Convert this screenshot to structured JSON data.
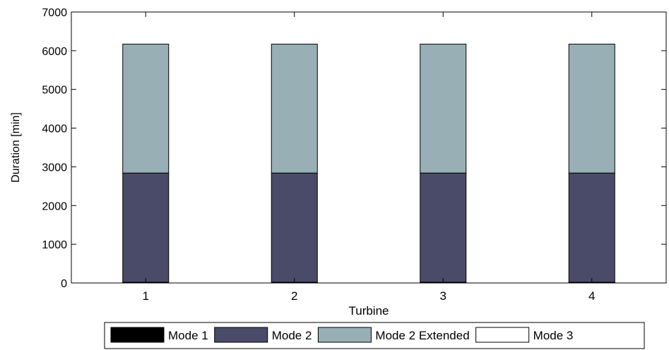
{
  "chart_data": {
    "type": "bar",
    "stacked": true,
    "categories": [
      "1",
      "2",
      "3",
      "4"
    ],
    "series": [
      {
        "name": "Mode 1",
        "color": "#000000",
        "values": [
          20,
          20,
          20,
          20
        ]
      },
      {
        "name": "Mode 2",
        "color": "#4a4a69",
        "values": [
          2820,
          2820,
          2820,
          2820
        ]
      },
      {
        "name": "Mode 2 Extended",
        "color": "#98afb6",
        "values": [
          3330,
          3330,
          3330,
          3330
        ]
      },
      {
        "name": "Mode 3",
        "color": "#ffffff",
        "values": [
          0,
          0,
          0,
          0
        ]
      }
    ],
    "xlabel": "Turbine",
    "ylabel": "Duration [min]",
    "ylim": [
      0,
      7000
    ],
    "yticks": [
      0,
      1000,
      2000,
      3000,
      4000,
      5000,
      6000,
      7000
    ],
    "grid": false,
    "legend_position": "bottom"
  }
}
